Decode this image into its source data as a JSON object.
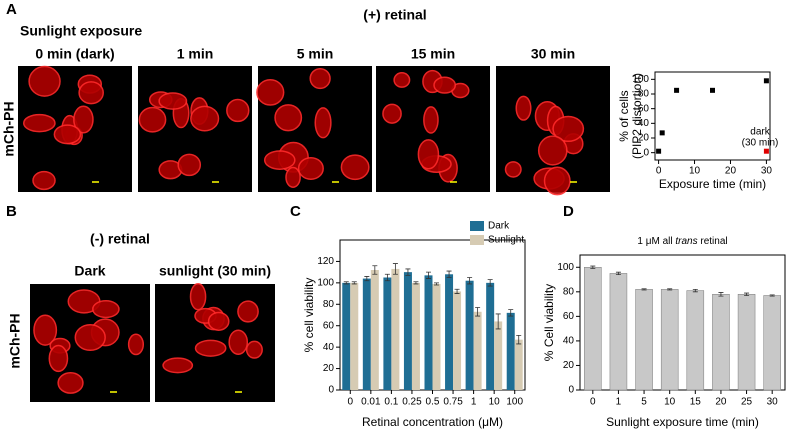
{
  "panel_labels": [
    "A",
    "B",
    "C",
    "D"
  ],
  "panel_a": {
    "heading": "(+) retinal",
    "subheading": "Sunlight exposure",
    "row_label": "mCh-PH",
    "captions": [
      "0 min (dark)",
      "1 min",
      "5 min",
      "15 min",
      "30 min"
    ]
  },
  "panel_b": {
    "heading": "(-) retinal",
    "row_label": "mCh-PH",
    "captions": [
      "Dark",
      "sunlight (30 min)"
    ]
  },
  "chart_data": [
    {
      "type": "scatter",
      "xlabel": "Exposure time (min)",
      "ylabel": [
        "% of cells",
        "(PIP2 distortion)"
      ],
      "xlim": [
        -1,
        31
      ],
      "xticks": [
        0,
        10,
        20,
        30
      ],
      "ylim": [
        -10,
        110
      ],
      "yticks": [
        0,
        20,
        40,
        60,
        80,
        100
      ],
      "series": [
        {
          "color": "#000000",
          "x": [
            0,
            1,
            5,
            15,
            30
          ],
          "values": [
            2,
            27,
            85,
            85,
            98
          ]
        },
        {
          "color": "#e00000",
          "x": [
            30
          ],
          "values": [
            2
          ]
        }
      ],
      "annotation": [
        "dark",
        "(30 min)"
      ]
    },
    {
      "type": "bar",
      "xlabel": "Retinal concentration (μM)",
      "ylabel": "% cell viability",
      "categories": [
        "0",
        "0.01",
        "0.1",
        "0.25",
        "0.5",
        "0.75",
        "1",
        "10",
        "100"
      ],
      "ylim": [
        0,
        140
      ],
      "yticks": [
        0,
        20,
        40,
        60,
        80,
        100,
        120
      ],
      "series": [
        {
          "name": "Dark",
          "color": "#1f6e94",
          "values": [
            100,
            104,
            105,
            110,
            107,
            108,
            102,
            100,
            72
          ],
          "errors": [
            1,
            2,
            3,
            3,
            3,
            3,
            3,
            3,
            3
          ]
        },
        {
          "name": "Sunlight",
          "color": "#d6cbb3",
          "values": [
            100,
            112,
            113,
            100,
            99,
            92,
            73,
            64,
            47
          ],
          "errors": [
            1,
            4,
            5,
            1,
            1,
            2,
            4,
            7,
            4
          ]
        }
      ]
    },
    {
      "type": "bar",
      "title": [
        "1 μM all ",
        "trans",
        " retinal"
      ],
      "xlabel": "Sunlight exposure time (min)",
      "ylabel": "% Cell viability",
      "categories": [
        "0",
        "1",
        "5",
        "10",
        "15",
        "20",
        "25",
        "30"
      ],
      "ylim": [
        0,
        110
      ],
      "yticks": [
        0,
        20,
        40,
        60,
        80,
        100
      ],
      "series": [
        {
          "color": "#c8c8c8",
          "values": [
            100,
            95,
            82,
            82,
            81,
            78,
            78,
            77
          ],
          "errors": [
            1,
            1,
            0.5,
            0.5,
            1,
            1.5,
            1,
            0.5
          ]
        }
      ]
    }
  ]
}
